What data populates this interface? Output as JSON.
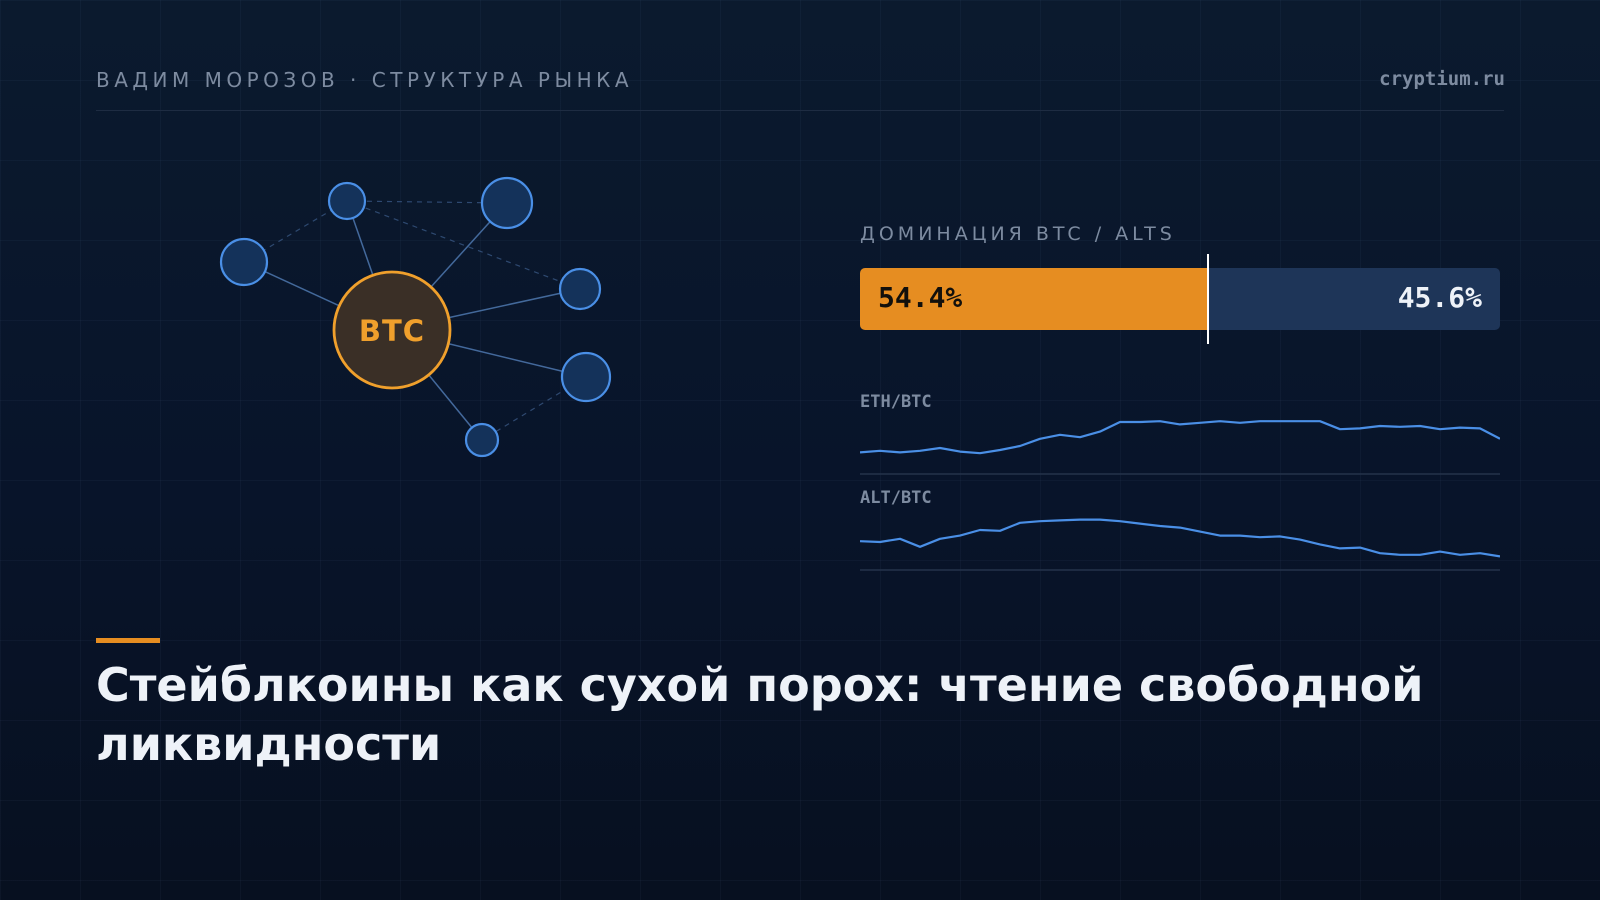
{
  "header": {
    "author_section": "ВАДИМ МОРОЗОВ · СТРУКТУРА РЫНКА",
    "site": "cryptium.ru"
  },
  "network": {
    "center_label": "BTC",
    "colors": {
      "center": "#f0a02c",
      "nodes": "#4a8fe6"
    }
  },
  "dominance": {
    "label": "ДОМИНАЦИЯ BTC / ALTS",
    "btc_percent": 54.4,
    "alts_percent": 45.6,
    "btc_text": "54.4%",
    "alts_text": "45.6%",
    "colors": {
      "btc": "#e68d21",
      "alts": "#1e3558"
    }
  },
  "sparklines": [
    {
      "label": "ETH/BTC",
      "values": [
        0.04,
        0.08,
        0.04,
        0.08,
        0.15,
        0.06,
        0.02,
        0.1,
        0.2,
        0.38,
        0.48,
        0.42,
        0.56,
        0.8,
        0.8,
        0.82,
        0.74,
        0.78,
        0.82,
        0.78,
        0.82,
        0.82,
        0.82,
        0.82,
        0.62,
        0.64,
        0.7,
        0.68,
        0.7,
        0.62,
        0.66,
        0.64,
        0.38
      ]
    },
    {
      "label": "ALT/BTC",
      "values": [
        0.22,
        0.2,
        0.28,
        0.08,
        0.28,
        0.36,
        0.5,
        0.48,
        0.68,
        0.72,
        0.74,
        0.76,
        0.76,
        0.72,
        0.66,
        0.6,
        0.56,
        0.46,
        0.36,
        0.36,
        0.32,
        0.34,
        0.26,
        0.14,
        0.04,
        0.06,
        -0.08,
        -0.12,
        -0.12,
        -0.04,
        -0.12,
        -0.08,
        -0.16
      ]
    }
  ],
  "article": {
    "title": "Стейблкоины как сухой порох: чтение свободной ликвидности"
  }
}
